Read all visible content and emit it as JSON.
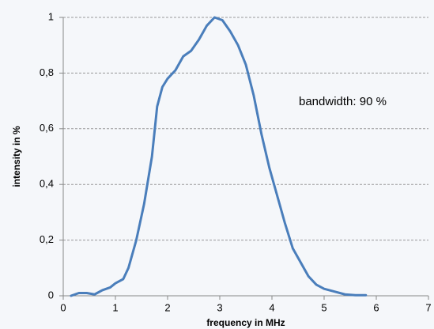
{
  "chart_data": {
    "type": "line",
    "x_label": "frequency in MHz",
    "y_label": "intensity in %",
    "annotation": "bandwidth: 90 %",
    "x": [
      0.15,
      0.3,
      0.45,
      0.6,
      0.75,
      0.9,
      1.0,
      1.15,
      1.25,
      1.4,
      1.55,
      1.7,
      1.8,
      1.9,
      2.0,
      2.15,
      2.3,
      2.45,
      2.6,
      2.75,
      2.9,
      3.05,
      3.2,
      3.35,
      3.5,
      3.65,
      3.8,
      3.95,
      4.1,
      4.25,
      4.4,
      4.55,
      4.7,
      4.85,
      5.0,
      5.2,
      5.4,
      5.6,
      5.8
    ],
    "series": [
      {
        "color": "#4a7ebb",
        "values": [
          0.0,
          0.01,
          0.01,
          0.005,
          0.02,
          0.03,
          0.045,
          0.06,
          0.1,
          0.2,
          0.33,
          0.5,
          0.68,
          0.75,
          0.78,
          0.81,
          0.86,
          0.88,
          0.92,
          0.97,
          1.0,
          0.99,
          0.95,
          0.9,
          0.83,
          0.72,
          0.58,
          0.46,
          0.36,
          0.26,
          0.17,
          0.12,
          0.07,
          0.04,
          0.025,
          0.015,
          0.005,
          0.002,
          0.002
        ]
      }
    ],
    "xlim": [
      0,
      7
    ],
    "xticks": [
      0,
      1,
      2,
      3,
      4,
      5,
      6,
      7
    ],
    "ylim": [
      0,
      1
    ],
    "yticks": [
      0,
      {
        "value": 0.2,
        "label": "0,2"
      },
      {
        "value": 0.4,
        "label": "0,4"
      },
      {
        "value": 0.6,
        "label": "0,6"
      },
      {
        "value": 0.8,
        "label": "0,8"
      },
      1
    ],
    "grid": true
  }
}
